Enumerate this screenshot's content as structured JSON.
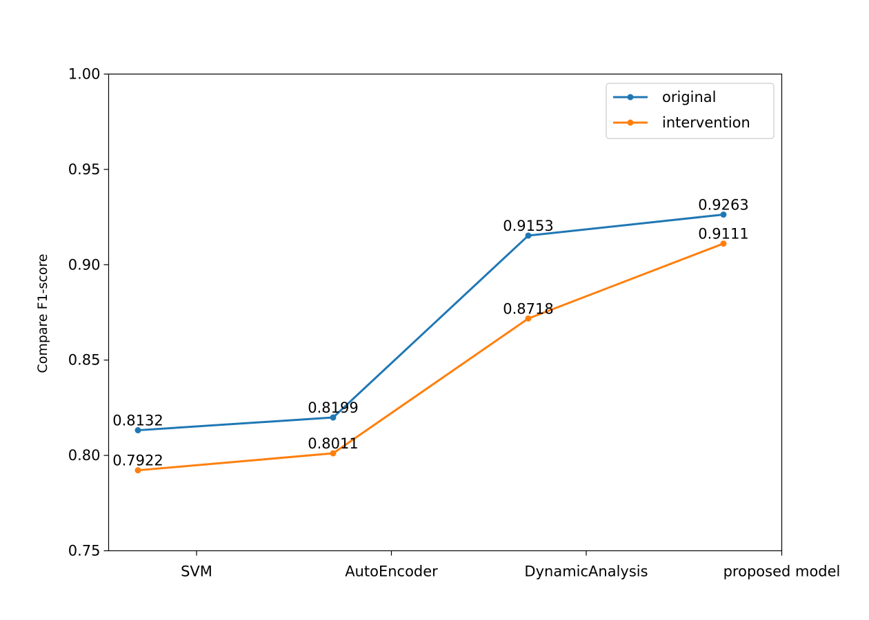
{
  "chart_data": {
    "type": "line",
    "title": "",
    "xlabel": "",
    "ylabel": "Compare F1-score",
    "categories": [
      "SVM",
      "AutoEncoder",
      "DynamicAnalysis",
      "proposed model"
    ],
    "series": [
      {
        "name": "original",
        "color": "#1f77b4",
        "values": [
          0.8132,
          0.8199,
          0.9153,
          0.9263
        ],
        "labels": [
          "0.8132",
          "0.8199",
          "0.9153",
          "0.9263"
        ]
      },
      {
        "name": "intervention",
        "color": "#ff7f0e",
        "values": [
          0.7922,
          0.8011,
          0.8718,
          0.9111
        ],
        "labels": [
          "0.7922",
          "0.8011",
          "0.8718",
          "0.9111"
        ]
      }
    ],
    "ylim": [
      0.75,
      1.0
    ],
    "yticks": [
      0.75,
      0.8,
      0.85,
      0.9,
      0.95,
      1.0
    ],
    "ytick_labels": [
      "0.75",
      "0.80",
      "0.85",
      "0.90",
      "0.95",
      "1.00"
    ],
    "grid": false,
    "legend_position": "top-right",
    "marker": "dot"
  }
}
